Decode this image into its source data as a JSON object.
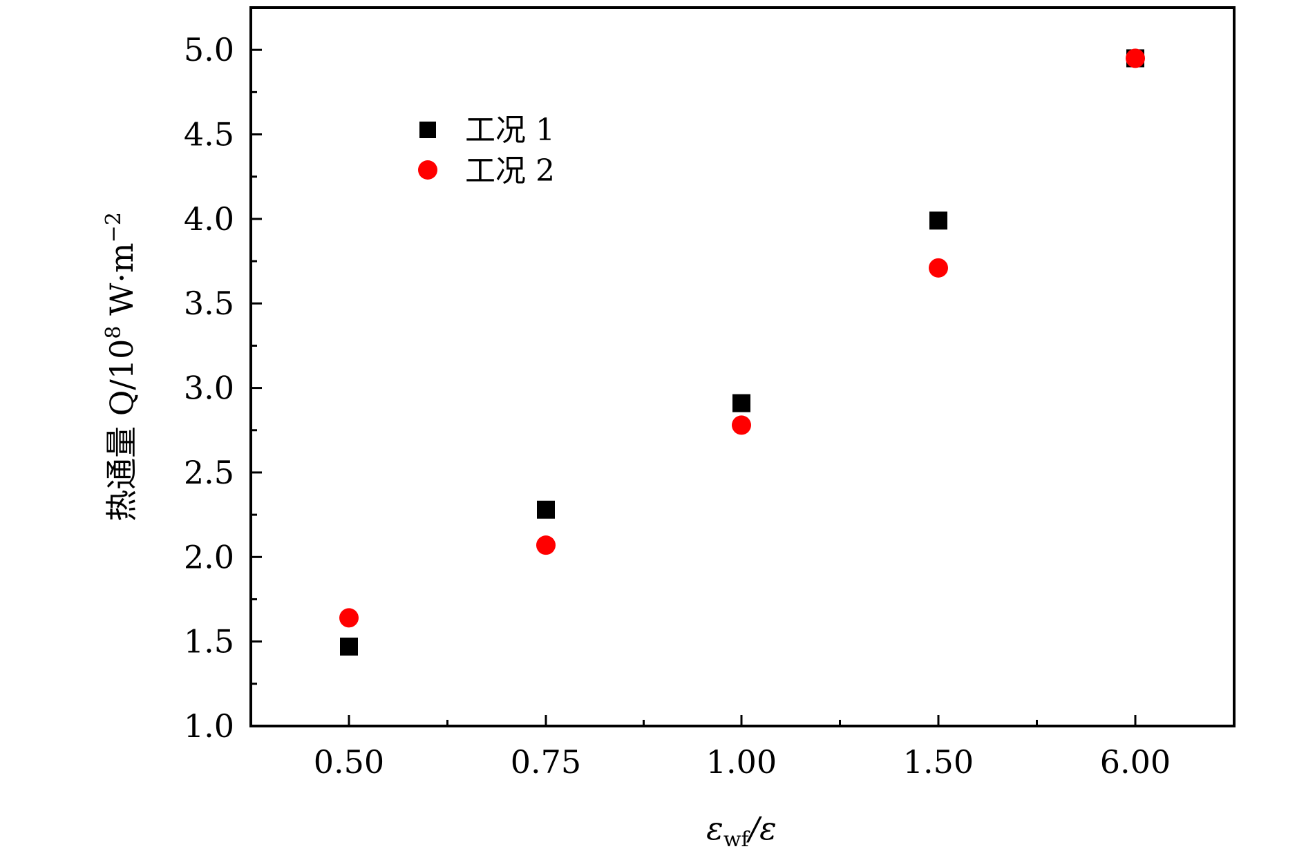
{
  "chart_data": {
    "type": "scatter",
    "categories": [
      "0.50",
      "0.75",
      "1.00",
      "1.50",
      "6.00"
    ],
    "series": [
      {
        "name": "工况 1",
        "marker": "square",
        "color": "#000000",
        "values": [
          1.47,
          2.28,
          2.91,
          3.99,
          4.95
        ]
      },
      {
        "name": "工况 2",
        "marker": "circle",
        "color": "#ff0000",
        "values": [
          1.64,
          2.07,
          2.78,
          3.71,
          4.95
        ]
      }
    ],
    "xlabel_main": "ε",
    "xlabel_sub": "wf",
    "xlabel_tail": "/ε",
    "ylabel_main": "热通量 Q/10",
    "ylabel_sup1": "8",
    "ylabel_unit": " W·m",
    "ylabel_sup2": "−2",
    "ylim": [
      1.0,
      5.25
    ],
    "yticks": [
      "1.0",
      "1.5",
      "2.0",
      "2.5",
      "3.0",
      "3.5",
      "4.0",
      "4.5",
      "5.0"
    ],
    "grid": false,
    "legend": "top-left"
  }
}
